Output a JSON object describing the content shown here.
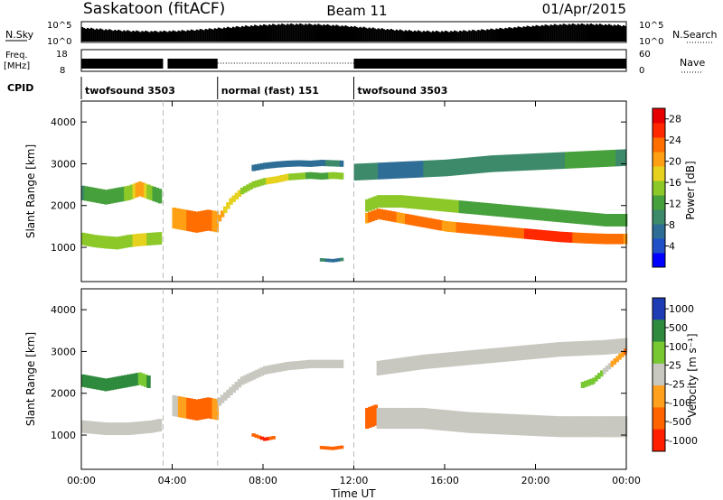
{
  "header": {
    "station": "Saskatoon (fitACF)",
    "beam": "Beam 11",
    "date": "01/Apr/2015"
  },
  "colors": {
    "scale": [
      "#0000ff",
      "#2050c8",
      "#2e6e96",
      "#3c8a6a",
      "#46a03c",
      "#8cc828",
      "#e6d21e",
      "#ffa014",
      "#ff6e00",
      "#ff2800",
      "#e60000"
    ],
    "velocity": [
      "#1e3cb4",
      "#2e8a3c",
      "#78c832",
      "#c8c8c0",
      "#ffa01e",
      "#ff6400",
      "#ff1e00"
    ]
  },
  "top_panels": {
    "nsky": {
      "label": "N.Sky",
      "right_label": "N.Search",
      "left_ticks": [
        "10^5",
        "10^0"
      ],
      "right_ticks": [
        "10^5",
        "10^0"
      ]
    },
    "freq": {
      "label_line1": "Freq.",
      "label_line2": "[MHz]",
      "right_label": "Nave",
      "left_ticks": [
        "18",
        "8"
      ],
      "right_ticks": [
        "60",
        "0"
      ]
    },
    "cpid": {
      "label": "CPID",
      "segments": [
        {
          "text": "twofsound 3503",
          "start": 0,
          "end": 6
        },
        {
          "text": "normal (fast) 151",
          "start": 6,
          "end": 12
        },
        {
          "text": "twofsound 3503",
          "start": 12,
          "end": 24
        }
      ]
    }
  },
  "chart_data": [
    {
      "type": "heatmap",
      "quantity": "power",
      "ylabel": "Slant Range [km]",
      "ylim": [
        180,
        4500
      ],
      "yticks": [
        "1000",
        "2000",
        "3000",
        "4000"
      ],
      "xlim": [
        0,
        24
      ],
      "colorbar": {
        "label": "Power [dB]",
        "ticks": [
          "4",
          "8",
          "12",
          "16",
          "20",
          "24",
          "28"
        ],
        "range": [
          0,
          30
        ]
      },
      "series": [
        {
          "name": "",
          "x": [
            0,
            0.5,
            1,
            1.5,
            2,
            2.5,
            3,
            3.5
          ],
          "range": [
            1200,
            1150,
            1120,
            1100,
            1150,
            1180,
            1200,
            1220
          ],
          "value": [
            16,
            15,
            14,
            15,
            16,
            17,
            16,
            15
          ],
          "width": 300
        },
        {
          "name": "",
          "x": [
            0,
            0.5,
            1,
            1.5,
            2,
            2.5,
            3,
            3.5
          ],
          "range": [
            2300,
            2250,
            2200,
            2250,
            2300,
            2400,
            2300,
            2200
          ],
          "value": [
            10,
            12,
            11,
            12,
            14,
            22,
            14,
            10
          ],
          "width": 350
        },
        {
          "name": "",
          "x": [
            4,
            4.5,
            5,
            5.5,
            6
          ],
          "range": [
            1700,
            1650,
            1600,
            1650,
            1600
          ],
          "value": [
            20,
            22,
            25,
            24,
            20
          ],
          "width": 500
        },
        {
          "name": "",
          "x": [
            6,
            6.5,
            7,
            7.5,
            8,
            8.5,
            9,
            9.5,
            10,
            10.5,
            11,
            11.5
          ],
          "range": [
            1700,
            2100,
            2350,
            2500,
            2580,
            2620,
            2680,
            2700,
            2720,
            2700,
            2720,
            2700
          ],
          "value": [
            20,
            18,
            16,
            15,
            16,
            18,
            17,
            14,
            13,
            12,
            14,
            15
          ],
          "width": 160
        },
        {
          "name": "",
          "x": [
            7.5,
            8,
            8.5,
            9,
            9.5,
            10,
            10.5,
            11,
            11.5
          ],
          "range": [
            2900,
            2950,
            2980,
            3000,
            3010,
            3000,
            3020,
            3010,
            3000
          ],
          "value": [
            6,
            7,
            7,
            6,
            6,
            6,
            7,
            8,
            7
          ],
          "width": 150
        },
        {
          "name": "",
          "x": [
            12.5,
            13,
            13.5,
            14,
            15,
            16,
            17,
            18,
            19,
            20,
            21,
            22,
            23,
            24
          ],
          "range": [
            1700,
            1800,
            1750,
            1700,
            1600,
            1500,
            1450,
            1400,
            1350,
            1300,
            1250,
            1220,
            1200,
            1200
          ],
          "value": [
            22,
            24,
            23,
            22,
            24,
            22,
            23,
            24,
            25,
            26,
            26,
            25,
            24,
            22
          ],
          "width": 250
        },
        {
          "name": "",
          "x": [
            12.5,
            13,
            14,
            15,
            16,
            17,
            18,
            19,
            20,
            21,
            22,
            23,
            24
          ],
          "range": [
            2000,
            2100,
            2100,
            2050,
            2000,
            1950,
            1900,
            1850,
            1800,
            1750,
            1700,
            1650,
            1650
          ],
          "value": [
            16,
            16,
            15,
            14,
            14,
            13,
            12,
            13,
            13,
            12,
            12,
            12,
            12
          ],
          "width": 300
        },
        {
          "name": "",
          "x": [
            12,
            14,
            16,
            18,
            20,
            22,
            24
          ],
          "range": [
            2800,
            2850,
            2900,
            3000,
            3050,
            3100,
            3150
          ],
          "value": [
            8,
            7,
            8,
            9,
            8,
            12,
            10
          ],
          "width": 400
        },
        {
          "name": "",
          "x": [
            10.5,
            11,
            11.5
          ],
          "range": [
            700,
            680,
            720
          ],
          "value": [
            8,
            6,
            8
          ],
          "width": 80
        }
      ]
    },
    {
      "type": "heatmap",
      "quantity": "velocity",
      "ylabel": "Slant Range [km]",
      "ylim": [
        180,
        4500
      ],
      "yticks": [
        "1000",
        "2000",
        "3000",
        "4000"
      ],
      "xlim": [
        0,
        24
      ],
      "xticks": [
        "00:00",
        "04:00",
        "08:00",
        "12:00",
        "16:00",
        "20:00",
        "00:00"
      ],
      "xlabel": "Time UT",
      "colorbar": {
        "label": "Velocity [m s⁻¹]",
        "ticks": [
          "1000",
          "500",
          "100",
          "25",
          "-25",
          "-100",
          "-500",
          "-1000"
        ]
      },
      "series": [
        {
          "name": "",
          "x": [
            0,
            1,
            2,
            3,
            3.5
          ],
          "range": [
            1200,
            1150,
            1150,
            1200,
            1250
          ],
          "value": [
            0,
            0,
            0,
            0,
            0
          ],
          "width": 300
        },
        {
          "name": "",
          "x": [
            0,
            1,
            2,
            2.5,
            3
          ],
          "range": [
            2300,
            2200,
            2300,
            2350,
            2250
          ],
          "value": [
            150,
            120,
            200,
            80,
            120
          ],
          "width": 300
        },
        {
          "name": "",
          "x": [
            4,
            4.5,
            5,
            5.5,
            6
          ],
          "range": [
            1700,
            1650,
            1600,
            1650,
            1600
          ],
          "value": [
            0,
            -80,
            -200,
            -150,
            0
          ],
          "width": 500
        },
        {
          "name": "",
          "x": [
            6,
            7,
            8,
            9,
            10,
            11,
            11.5
          ],
          "range": [
            1800,
            2300,
            2550,
            2650,
            2700,
            2700,
            2700
          ],
          "value": [
            0,
            0,
            0,
            0,
            0,
            0,
            0
          ],
          "width": 200
        },
        {
          "name": "",
          "x": [
            7.5,
            8,
            8.5
          ],
          "range": [
            1000,
            900,
            950
          ],
          "value": [
            -400,
            -600,
            -300
          ],
          "width": 80
        },
        {
          "name": "",
          "x": [
            10.5,
            11,
            11.5
          ],
          "range": [
            700,
            680,
            720
          ],
          "value": [
            -150,
            -200,
            -120
          ],
          "width": 80
        },
        {
          "name": "",
          "x": [
            12.5,
            13
          ],
          "range": [
            1400,
            1500
          ],
          "value": [
            -500,
            -300
          ],
          "width": 500
        },
        {
          "name": "",
          "x": [
            13,
            15,
            17,
            19,
            21,
            23,
            24
          ],
          "range": [
            1400,
            1400,
            1300,
            1250,
            1200,
            1200,
            1200
          ],
          "value": [
            0,
            0,
            0,
            0,
            0,
            0,
            0
          ],
          "width": 500
        },
        {
          "name": "",
          "x": [
            13,
            15,
            17,
            19,
            21,
            23,
            24
          ],
          "range": [
            2600,
            2750,
            2850,
            2950,
            3050,
            3100,
            3150
          ],
          "value": [
            0,
            0,
            0,
            0,
            0,
            0,
            0
          ],
          "width": 350
        },
        {
          "name": "",
          "x": [
            22,
            22.5,
            24
          ],
          "range": [
            2200,
            2300,
            3050
          ],
          "value": [
            100,
            80,
            -120
          ],
          "width": 150
        }
      ]
    }
  ]
}
